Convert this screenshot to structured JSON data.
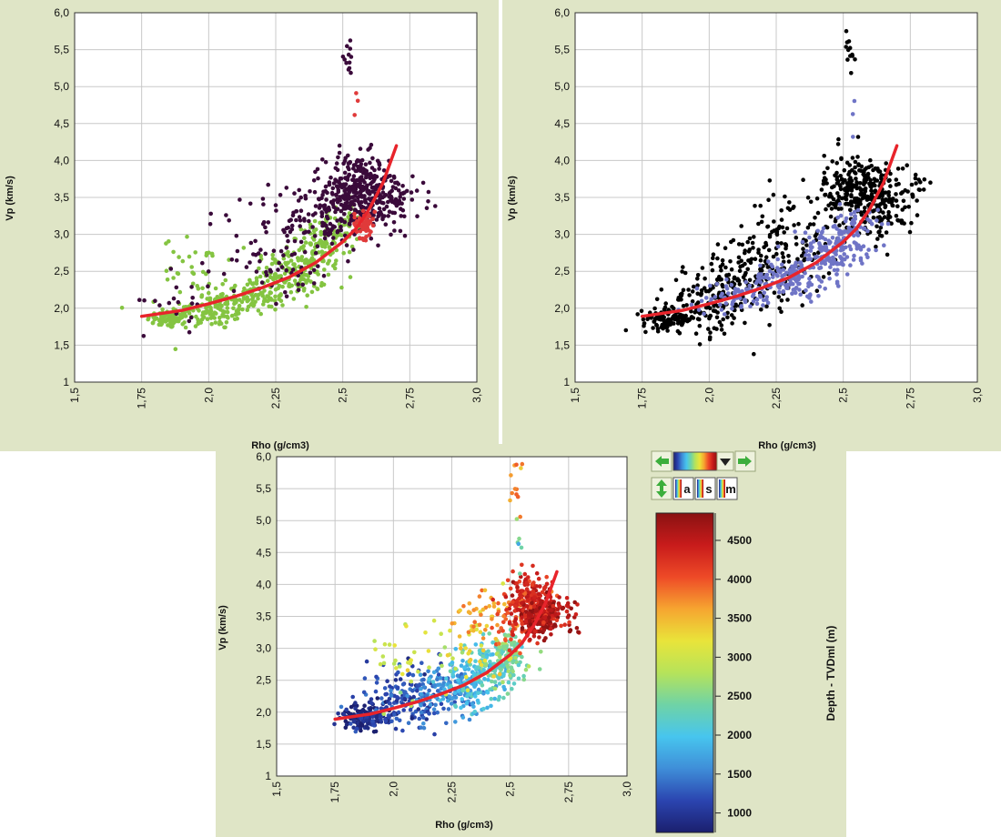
{
  "colors": {
    "panel_background": "#dfe5c6",
    "plot_background": "#ffffff",
    "grid": "#c8c8c8",
    "trend_line": "#e8242b",
    "toolbar_arrow": "#3cae3c"
  },
  "toolbar": {
    "left_arrow_icon": "arrow-left-icon",
    "right_arrow_icon": "arrow-right-icon",
    "palette_icon": "color-ramp-icon",
    "dropdown_icon": "chevron-down-icon",
    "updown_icon": "arrow-updown-icon",
    "button_a_label": "a",
    "button_s_label": "s",
    "button_m_label": "m"
  },
  "colorbar": {
    "title": "Depth - TVDml (m)",
    "ticks": [
      "1000",
      "1500",
      "2000",
      "2500",
      "3000",
      "3500",
      "4000",
      "4500"
    ],
    "tick_values": [
      1000,
      1500,
      2000,
      2500,
      3000,
      3500,
      4000,
      4500
    ],
    "range": [
      750,
      4850
    ],
    "stops": [
      "#1b1f6e",
      "#2b45b0",
      "#3f8ed8",
      "#47c5ee",
      "#6fd3a6",
      "#b6e35a",
      "#e9e43a",
      "#f6a530",
      "#ee4a27",
      "#c81b1b",
      "#8a1212"
    ]
  },
  "chart_data": [
    {
      "type": "scatter",
      "panel": "top-left",
      "xlabel": "Rho  (g/cm3)",
      "ylabel": "Vp (km/s)",
      "xlim": [
        1.5,
        3.0
      ],
      "ylim": [
        1,
        6
      ],
      "x_ticks": [
        1.5,
        1.75,
        2.0,
        2.25,
        2.5,
        2.75,
        3.0
      ],
      "x_tick_labels": [
        "1,5",
        "1,75",
        "2,0",
        "2,25",
        "2,5",
        "2,75",
        "3,0"
      ],
      "y_ticks": [
        1,
        1.5,
        2,
        2.5,
        3,
        3.5,
        4,
        4.5,
        5,
        5.5,
        6
      ],
      "y_tick_labels": [
        "1",
        "1,5",
        "2,0",
        "2,5",
        "3,0",
        "3,5",
        "4,0",
        "4,5",
        "5,0",
        "5,5",
        "6,0"
      ],
      "grid": true,
      "series": [
        {
          "color": "#84c441",
          "clusters": [
            {
              "x": 1.85,
              "y": 1.85,
              "sx": 0.04,
              "sy": 0.06,
              "n": 70
            },
            {
              "x": 2.0,
              "y": 1.95,
              "sx": 0.08,
              "sy": 0.12,
              "n": 110
            },
            {
              "x": 2.15,
              "y": 2.15,
              "sx": 0.07,
              "sy": 0.12,
              "n": 110
            },
            {
              "x": 2.3,
              "y": 2.45,
              "sx": 0.07,
              "sy": 0.15,
              "n": 120
            },
            {
              "x": 2.42,
              "y": 2.8,
              "sx": 0.06,
              "sy": 0.18,
              "n": 110
            },
            {
              "x": 1.95,
              "y": 2.55,
              "sx": 0.06,
              "sy": 0.2,
              "n": 35
            },
            {
              "x": 2.5,
              "y": 3.2,
              "sx": 0.04,
              "sy": 0.15,
              "n": 40
            }
          ]
        },
        {
          "color": "#3a0a3a",
          "clusters": [
            {
              "x": 2.55,
              "y": 3.6,
              "sx": 0.06,
              "sy": 0.25,
              "n": 260
            },
            {
              "x": 2.45,
              "y": 3.3,
              "sx": 0.07,
              "sy": 0.25,
              "n": 110
            },
            {
              "x": 2.66,
              "y": 3.45,
              "sx": 0.05,
              "sy": 0.25,
              "n": 90
            },
            {
              "x": 2.3,
              "y": 2.7,
              "sx": 0.08,
              "sy": 0.3,
              "n": 60
            },
            {
              "x": 2.15,
              "y": 3.0,
              "sx": 0.1,
              "sy": 0.4,
              "n": 25
            },
            {
              "x": 2.52,
              "y": 5.5,
              "sx": 0.012,
              "sy": 0.2,
              "n": 12
            },
            {
              "x": 2.78,
              "y": 3.55,
              "sx": 0.04,
              "sy": 0.15,
              "n": 14
            },
            {
              "x": 1.9,
              "y": 2.1,
              "sx": 0.07,
              "sy": 0.2,
              "n": 20
            }
          ]
        },
        {
          "color": "#e03a3a",
          "clusters": [
            {
              "x": 2.58,
              "y": 3.15,
              "sx": 0.02,
              "sy": 0.1,
              "n": 55
            },
            {
              "x": 2.54,
              "y": 4.7,
              "sx": 0.005,
              "sy": 0.25,
              "n": 3
            }
          ]
        }
      ],
      "trend_line": {
        "x": [
          1.75,
          1.9,
          2.0,
          2.1,
          2.2,
          2.3,
          2.4,
          2.5,
          2.55,
          2.6,
          2.65,
          2.7
        ],
        "y": [
          1.89,
          1.97,
          2.06,
          2.16,
          2.28,
          2.42,
          2.62,
          2.9,
          3.08,
          3.35,
          3.7,
          4.2
        ]
      }
    },
    {
      "type": "scatter",
      "panel": "top-right",
      "xlabel": "Rho  (g/cm3)",
      "ylabel": "Vp (km/s)",
      "xlim": [
        1.5,
        3.0
      ],
      "ylim": [
        1,
        6
      ],
      "x_ticks": [
        1.5,
        1.75,
        2.0,
        2.25,
        2.5,
        2.75,
        3.0
      ],
      "x_tick_labels": [
        "1,5",
        "1,75",
        "2,0",
        "2,25",
        "2,5",
        "2,75",
        "3,0"
      ],
      "y_ticks": [
        1,
        1.5,
        2,
        2.5,
        3,
        3.5,
        4,
        4.5,
        5,
        5.5,
        6
      ],
      "y_tick_labels": [
        "1",
        "1,5",
        "2,0",
        "2,5",
        "3,0",
        "3,5",
        "4,0",
        "4,5",
        "5,0",
        "5,5",
        "6,0"
      ],
      "grid": true,
      "series": [
        {
          "color": "#000000",
          "clusters": [
            {
              "x": 1.85,
              "y": 1.85,
              "sx": 0.05,
              "sy": 0.07,
              "n": 110
            },
            {
              "x": 2.0,
              "y": 2.1,
              "sx": 0.08,
              "sy": 0.25,
              "n": 130
            },
            {
              "x": 2.15,
              "y": 2.45,
              "sx": 0.08,
              "sy": 0.3,
              "n": 120
            },
            {
              "x": 2.3,
              "y": 2.9,
              "sx": 0.08,
              "sy": 0.35,
              "n": 110
            },
            {
              "x": 2.55,
              "y": 3.6,
              "sx": 0.06,
              "sy": 0.25,
              "n": 240
            },
            {
              "x": 2.66,
              "y": 3.45,
              "sx": 0.05,
              "sy": 0.25,
              "n": 100
            },
            {
              "x": 2.52,
              "y": 5.5,
              "sx": 0.012,
              "sy": 0.2,
              "n": 12
            },
            {
              "x": 2.78,
              "y": 3.55,
              "sx": 0.04,
              "sy": 0.15,
              "n": 14
            }
          ]
        },
        {
          "color": "#6f74c6",
          "clusters": [
            {
              "x": 2.1,
              "y": 2.15,
              "sx": 0.08,
              "sy": 0.1,
              "n": 70
            },
            {
              "x": 2.3,
              "y": 2.4,
              "sx": 0.07,
              "sy": 0.12,
              "n": 120
            },
            {
              "x": 2.45,
              "y": 2.75,
              "sx": 0.06,
              "sy": 0.18,
              "n": 140
            },
            {
              "x": 2.55,
              "y": 3.05,
              "sx": 0.04,
              "sy": 0.15,
              "n": 60
            },
            {
              "x": 2.54,
              "y": 4.7,
              "sx": 0.005,
              "sy": 0.25,
              "n": 3
            }
          ]
        }
      ],
      "trend_line": {
        "x": [
          1.75,
          1.9,
          2.0,
          2.1,
          2.2,
          2.3,
          2.4,
          2.5,
          2.55,
          2.6,
          2.65,
          2.7
        ],
        "y": [
          1.89,
          1.97,
          2.06,
          2.16,
          2.28,
          2.42,
          2.62,
          2.9,
          3.08,
          3.35,
          3.7,
          4.2
        ]
      }
    },
    {
      "type": "scatter",
      "panel": "bottom",
      "xlabel": "Rho  (g/cm3)",
      "ylabel": "Vp (km/s)",
      "xlim": [
        1.5,
        3.0
      ],
      "ylim": [
        1,
        6
      ],
      "x_ticks": [
        1.5,
        1.75,
        2.0,
        2.25,
        2.5,
        2.75,
        3.0
      ],
      "x_tick_labels": [
        "1,5",
        "1,75",
        "2,0",
        "2,25",
        "2,5",
        "2,75",
        "3,0"
      ],
      "y_ticks": [
        1,
        1.5,
        2,
        2.5,
        3,
        3.5,
        4,
        4.5,
        5,
        5.5,
        6
      ],
      "y_tick_labels": [
        "1",
        "1,5",
        "2,0",
        "2,5",
        "3,0",
        "3,5",
        "4,0",
        "4,5",
        "5,0",
        "5,5",
        "6,0"
      ],
      "grid": true,
      "color_by": "depth",
      "clusters": [
        {
          "x": 1.88,
          "y": 1.9,
          "sx": 0.06,
          "sy": 0.1,
          "n": 150,
          "depth": 900
        },
        {
          "x": 2.05,
          "y": 2.2,
          "sx": 0.08,
          "sy": 0.25,
          "n": 140,
          "depth": 1150
        },
        {
          "x": 2.2,
          "y": 2.3,
          "sx": 0.07,
          "sy": 0.18,
          "n": 120,
          "depth": 1500
        },
        {
          "x": 2.32,
          "y": 2.45,
          "sx": 0.06,
          "sy": 0.18,
          "n": 120,
          "depth": 1900
        },
        {
          "x": 2.42,
          "y": 2.7,
          "sx": 0.05,
          "sy": 0.2,
          "n": 110,
          "depth": 2200
        },
        {
          "x": 2.5,
          "y": 2.9,
          "sx": 0.05,
          "sy": 0.2,
          "n": 100,
          "depth": 2450
        },
        {
          "x": 2.1,
          "y": 2.8,
          "sx": 0.1,
          "sy": 0.3,
          "n": 35,
          "depth": 2900
        },
        {
          "x": 2.35,
          "y": 3.1,
          "sx": 0.08,
          "sy": 0.3,
          "n": 40,
          "depth": 3200
        },
        {
          "x": 2.4,
          "y": 3.5,
          "sx": 0.07,
          "sy": 0.2,
          "n": 35,
          "depth": 3600
        },
        {
          "x": 2.5,
          "y": 3.4,
          "sx": 0.05,
          "sy": 0.25,
          "n": 35,
          "depth": 3900
        },
        {
          "x": 2.58,
          "y": 3.7,
          "sx": 0.05,
          "sy": 0.25,
          "n": 220,
          "depth": 4300
        },
        {
          "x": 2.63,
          "y": 3.5,
          "sx": 0.04,
          "sy": 0.15,
          "n": 150,
          "depth": 4650
        },
        {
          "x": 2.72,
          "y": 3.6,
          "sx": 0.05,
          "sy": 0.15,
          "n": 40,
          "depth": 4500
        },
        {
          "x": 2.52,
          "y": 5.55,
          "sx": 0.012,
          "sy": 0.18,
          "n": 12,
          "depth": 3800
        },
        {
          "x": 2.54,
          "y": 4.7,
          "sx": 0.006,
          "sy": 0.3,
          "n": 6,
          "depth": 2300
        },
        {
          "x": 2.8,
          "y": 3.3,
          "sx": 0.04,
          "sy": 0.05,
          "n": 5,
          "depth": 4700
        }
      ],
      "trend_line": {
        "x": [
          1.75,
          1.9,
          2.0,
          2.1,
          2.2,
          2.3,
          2.4,
          2.5,
          2.55,
          2.6,
          2.65,
          2.7
        ],
        "y": [
          1.89,
          1.97,
          2.06,
          2.16,
          2.28,
          2.42,
          2.62,
          2.9,
          3.08,
          3.35,
          3.7,
          4.2
        ]
      }
    }
  ]
}
